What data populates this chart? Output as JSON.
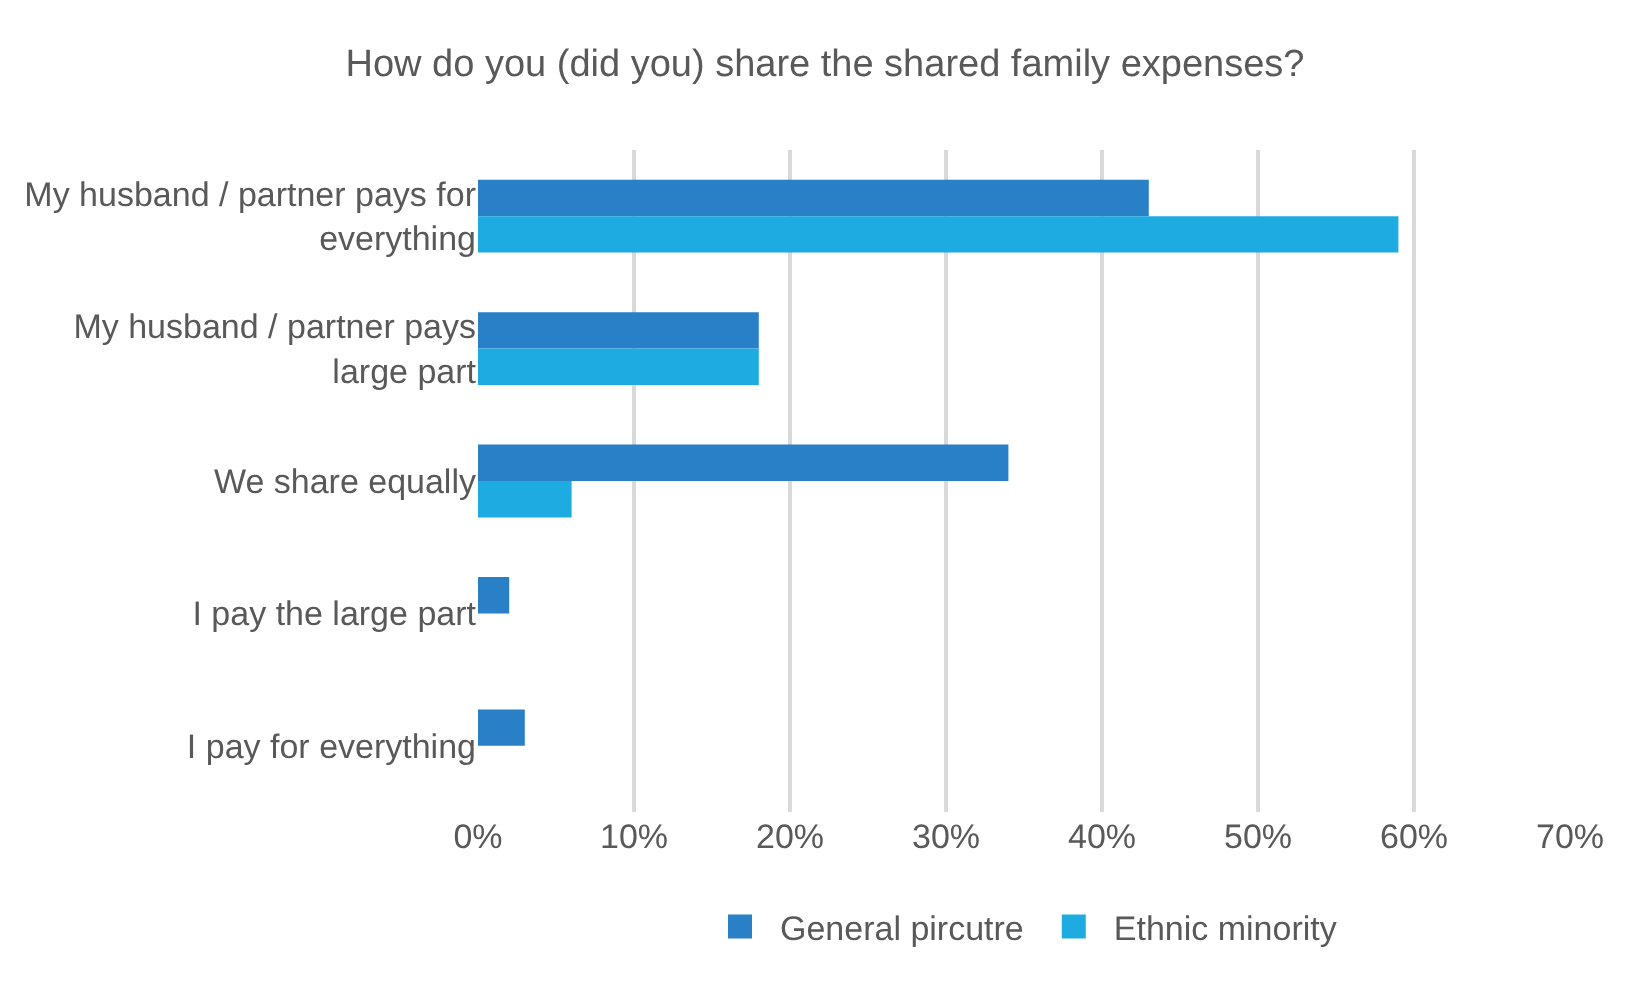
{
  "chart_data": {
    "type": "bar",
    "orientation": "horizontal",
    "title": "How do you (did you) share the shared family expenses?",
    "categories": [
      "My husband / partner pays for everything",
      "My husband / partner pays large part",
      "We share equally",
      "I pay the large part",
      "I pay for everything"
    ],
    "series": [
      {
        "name": "General pircutre",
        "color": "#2a80c6",
        "values": [
          43,
          18,
          34,
          2,
          3
        ]
      },
      {
        "name": "Ethnic minority",
        "color": "#1eabe2",
        "values": [
          59,
          18,
          6,
          null,
          null
        ]
      }
    ],
    "xlim": [
      0,
      70
    ],
    "xticks": [
      {
        "value": 0,
        "label": "0%"
      },
      {
        "value": 10,
        "label": "10%"
      },
      {
        "value": 20,
        "label": "20%"
      },
      {
        "value": 30,
        "label": "30%"
      },
      {
        "value": 40,
        "label": "40%"
      },
      {
        "value": 50,
        "label": "50%"
      },
      {
        "value": 60,
        "label": "60%"
      },
      {
        "value": 70,
        "label": "70%"
      }
    ],
    "grid": "x",
    "legend": "bottom"
  }
}
